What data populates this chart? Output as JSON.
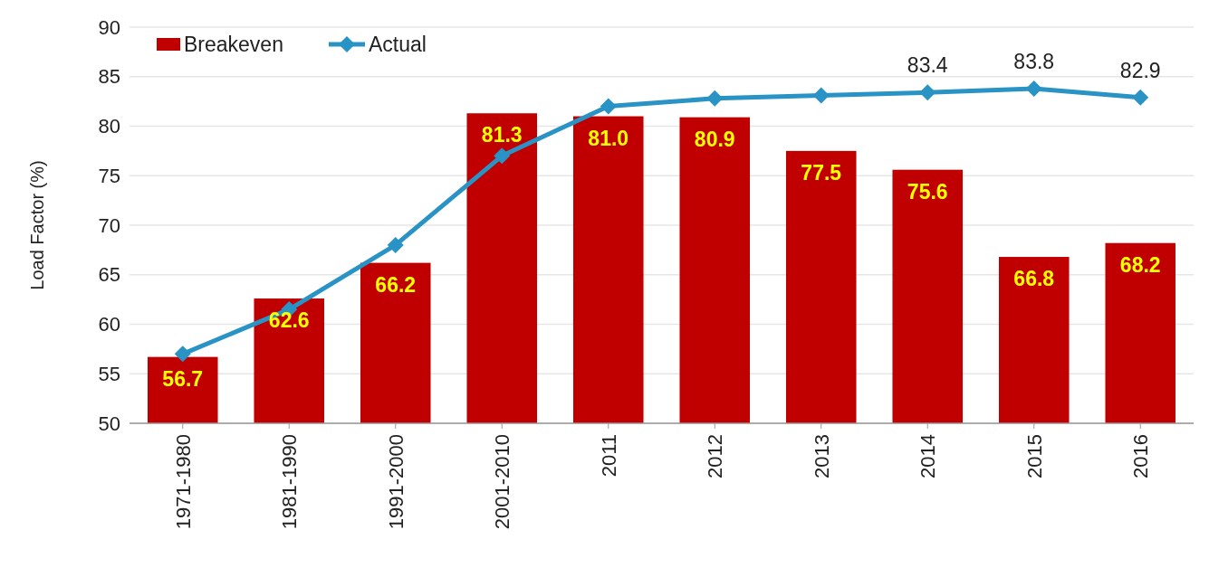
{
  "chart_data": {
    "type": "bar",
    "ylabel": "Load Factor (%)",
    "categories": [
      "1971-1980",
      "1981-1990",
      "1991-2000",
      "2001-2010",
      "2011",
      "2012",
      "2013",
      "2014",
      "2015",
      "2016"
    ],
    "series": [
      {
        "name": "Breakeven",
        "color": "#c00000",
        "values": [
          56.7,
          62.6,
          66.2,
          81.3,
          81.0,
          80.9,
          77.5,
          75.6,
          66.8,
          68.2
        ],
        "value_labels": [
          "56.7",
          "62.6",
          "66.2",
          "81.3",
          "81.0",
          "80.9",
          "77.5",
          "75.6",
          "66.8",
          "68.2"
        ]
      },
      {
        "name": "Actual",
        "type": "line",
        "color": "#2a93c5",
        "marker": "diamond",
        "values": [
          57.0,
          61.5,
          68.0,
          77.0,
          82.0,
          82.8,
          83.1,
          83.4,
          83.8,
          82.9
        ],
        "value_labels": [
          null,
          null,
          null,
          null,
          null,
          null,
          null,
          "83.4",
          "83.8",
          "82.9"
        ]
      }
    ],
    "ylim": [
      50,
      90
    ],
    "yticks": [
      50,
      55,
      60,
      65,
      70,
      75,
      80,
      85,
      90
    ],
    "grid": "y",
    "legend": "top left"
  }
}
